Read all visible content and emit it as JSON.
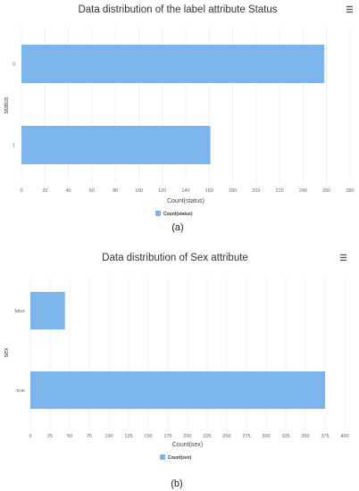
{
  "chart_data": [
    {
      "type": "bar",
      "orientation": "horizontal",
      "title": "Data distribution of the label attribute Status",
      "xlabel": "Count(status)",
      "ylabel": "status",
      "categories": [
        "0",
        "1"
      ],
      "series": [
        {
          "name": "Count(status)",
          "values": [
            258,
            161
          ]
        }
      ],
      "xlim": [
        0,
        280
      ],
      "xticks": [
        "0",
        "20",
        "40",
        "60",
        "80",
        "100",
        "120",
        "140",
        "160",
        "180",
        "200",
        "220",
        "240",
        "260",
        "280"
      ],
      "grid": true,
      "legend": "bottom-center",
      "color": "#7cb5ec",
      "caption": "(a)",
      "menu_icon": "hamburger-menu-icon"
    },
    {
      "type": "bar",
      "orientation": "horizontal",
      "title": "Data distribution of Sex attribute",
      "xlabel": "Count(sex)",
      "ylabel": "sex",
      "categories": [
        "false",
        "true"
      ],
      "series": [
        {
          "name": "Count(sex)",
          "values": [
            44,
            375
          ]
        }
      ],
      "xlim": [
        0,
        400
      ],
      "xticks": [
        "0",
        "25",
        "50",
        "75",
        "100",
        "125",
        "150",
        "175",
        "200",
        "225",
        "250",
        "275",
        "300",
        "325",
        "350",
        "375",
        "400"
      ],
      "grid": true,
      "legend": "bottom-center",
      "color": "#7cb5ec",
      "caption": "(b)",
      "menu_icon": "hamburger-menu-icon"
    }
  ]
}
